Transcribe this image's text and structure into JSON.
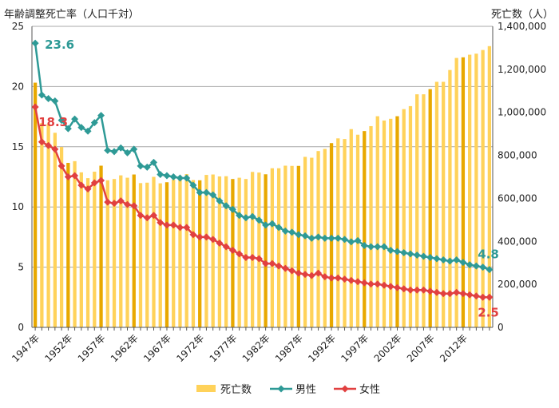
{
  "chart_data": {
    "type": "bar+line",
    "left_axis_title": "年齢調整死亡率（人口千対）",
    "right_axis_title": "死亡数（人）",
    "y_left": {
      "min": 0,
      "max": 25,
      "ticks": [
        0,
        5,
        10,
        15,
        20,
        25
      ]
    },
    "y_right": {
      "min": 0,
      "max": 1400000,
      "ticks": [
        0,
        200000,
        400000,
        600000,
        800000,
        1000000,
        1200000,
        1400000
      ],
      "tick_labels": [
        "0",
        "200,000",
        "400,000",
        "600,000",
        "800,000",
        "1,000,000",
        "1,200,000",
        "1,400,000"
      ]
    },
    "x_tick_labels": [
      {
        "year": 1947,
        "label": "1947年"
      },
      {
        "year": 1952,
        "label": "1952年"
      },
      {
        "year": 1957,
        "label": "1957年"
      },
      {
        "year": 1962,
        "label": "1962年"
      },
      {
        "year": 1967,
        "label": "1967年"
      },
      {
        "year": 1972,
        "label": "1972年"
      },
      {
        "year": 1977,
        "label": "1977年"
      },
      {
        "year": 1982,
        "label": "1982年"
      },
      {
        "year": 1987,
        "label": "1987年"
      },
      {
        "year": 1992,
        "label": "1992年"
      },
      {
        "year": 1997,
        "label": "1997年"
      },
      {
        "year": 2002,
        "label": "2002年"
      },
      {
        "year": 2007,
        "label": "2007年"
      },
      {
        "year": 2012,
        "label": "2012年"
      }
    ],
    "years": [
      1947,
      1948,
      1949,
      1950,
      1951,
      1952,
      1953,
      1954,
      1955,
      1956,
      1957,
      1958,
      1959,
      1960,
      1961,
      1962,
      1963,
      1964,
      1965,
      1966,
      1967,
      1968,
      1969,
      1970,
      1971,
      1972,
      1973,
      1974,
      1975,
      1976,
      1977,
      1978,
      1979,
      1980,
      1981,
      1982,
      1983,
      1984,
      1985,
      1986,
      1987,
      1988,
      1989,
      1990,
      1991,
      1992,
      1993,
      1994,
      1995,
      1996,
      1997,
      1998,
      1999,
      2000,
      2001,
      2002,
      2003,
      2004,
      2005,
      2006,
      2007,
      2008,
      2009,
      2010,
      2011,
      2012,
      2013,
      2014,
      2015,
      2016
    ],
    "series": [
      {
        "name": "死亡数",
        "kind": "bar",
        "axis": "right",
        "color": "#FFD25A",
        "highlight_color": "#E8A800",
        "values": [
          1138000,
          950000,
          945000,
          905000,
          839000,
          765000,
          773000,
          721000,
          694000,
          724000,
          752000,
          684000,
          690000,
          707000,
          696000,
          711000,
          671000,
          673000,
          700000,
          670000,
          675000,
          687000,
          694000,
          713000,
          685000,
          684000,
          709000,
          711000,
          702000,
          703000,
          690000,
          696000,
          690000,
          723000,
          720000,
          712000,
          740000,
          740000,
          752000,
          751000,
          751000,
          793000,
          789000,
          820000,
          830000,
          857000,
          879000,
          876000,
          922000,
          896000,
          913000,
          936000,
          982000,
          962000,
          970000,
          982000,
          1015000,
          1029000,
          1084000,
          1084000,
          1108000,
          1142000,
          1142000,
          1197000,
          1253000,
          1256000,
          1268000,
          1273000,
          1290000,
          1308000
        ],
        "highlight_years": [
          1947,
          1952,
          1957,
          1962,
          1967,
          1972,
          1977,
          1982,
          1987,
          1992,
          1997,
          2002,
          2007,
          2012
        ]
      },
      {
        "name": "男性",
        "kind": "line",
        "axis": "left",
        "color": "#2E9A96",
        "values": [
          23.6,
          19.3,
          19.0,
          18.8,
          17.2,
          16.5,
          17.3,
          16.6,
          16.3,
          17.0,
          17.6,
          14.7,
          14.6,
          14.9,
          14.5,
          14.8,
          13.4,
          13.3,
          13.7,
          12.7,
          12.6,
          12.5,
          12.4,
          12.4,
          11.8,
          11.2,
          11.2,
          11.0,
          10.5,
          10.1,
          9.8,
          9.3,
          9.1,
          9.2,
          8.9,
          8.5,
          8.6,
          8.3,
          8.0,
          7.9,
          7.7,
          7.6,
          7.4,
          7.5,
          7.4,
          7.4,
          7.4,
          7.3,
          7.1,
          7.2,
          6.8,
          6.7,
          6.7,
          6.7,
          6.4,
          6.3,
          6.2,
          6.1,
          6.0,
          5.9,
          5.8,
          5.7,
          5.6,
          5.5,
          5.6,
          5.4,
          5.2,
          5.1,
          5.0,
          4.8
        ]
      },
      {
        "name": "女性",
        "kind": "line",
        "axis": "left",
        "color": "#E14040",
        "values": [
          18.3,
          15.4,
          15.1,
          14.8,
          13.4,
          12.5,
          12.6,
          11.8,
          11.5,
          12.0,
          12.2,
          10.4,
          10.3,
          10.5,
          10.2,
          10.1,
          9.3,
          9.1,
          9.3,
          8.7,
          8.5,
          8.5,
          8.3,
          8.3,
          7.7,
          7.5,
          7.5,
          7.3,
          7.0,
          6.7,
          6.4,
          6.1,
          5.8,
          5.8,
          5.7,
          5.3,
          5.3,
          5.1,
          4.9,
          4.7,
          4.5,
          4.4,
          4.3,
          4.5,
          4.2,
          4.1,
          4.1,
          4.0,
          3.9,
          3.8,
          3.7,
          3.6,
          3.6,
          3.5,
          3.4,
          3.3,
          3.2,
          3.1,
          3.1,
          3.1,
          3.0,
          2.9,
          2.8,
          2.8,
          2.9,
          2.8,
          2.7,
          2.6,
          2.5,
          2.5
        ]
      }
    ],
    "annotations": [
      {
        "series": "男性",
        "year": 1947,
        "text": "23.6",
        "color": "#2E9A96"
      },
      {
        "series": "女性",
        "year": 1947,
        "text": "18.3",
        "color": "#E14040"
      },
      {
        "series": "男性",
        "year": 2016,
        "text": "4.8",
        "color": "#2E9A96"
      },
      {
        "series": "女性",
        "year": 2016,
        "text": "2.5",
        "color": "#E14040"
      }
    ],
    "legend": {
      "placement": "bottom",
      "items": [
        {
          "name": "死亡数",
          "kind": "bar",
          "color": "#FFD25A"
        },
        {
          "name": "男性",
          "kind": "line",
          "color": "#2E9A96"
        },
        {
          "name": "女性",
          "kind": "line",
          "color": "#E14040"
        }
      ]
    },
    "grid": {
      "horizontal": true,
      "color": "#a8a8a8"
    }
  }
}
